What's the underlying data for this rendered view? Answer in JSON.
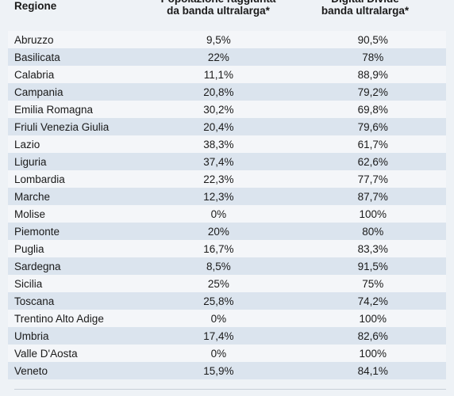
{
  "table": {
    "header": [
      "Regione",
      "Popolazione raggiunta\nda banda ultralarga*",
      "Digital Divide\nbanda ultralarga*"
    ],
    "rows": [
      [
        "Abruzzo",
        "9,5%",
        "90,5%"
      ],
      [
        "Basilicata",
        "22%",
        "78%"
      ],
      [
        "Calabria",
        "11,1%",
        "88,9%"
      ],
      [
        "Campania",
        "20,8%",
        "79,2%"
      ],
      [
        "Emilia Romagna",
        "30,2%",
        "69,8%"
      ],
      [
        "Friuli Venezia Giulia",
        "20,4%",
        "79,6%"
      ],
      [
        "Lazio",
        "38,3%",
        "61,7%"
      ],
      [
        "Liguria",
        "37,4%",
        "62,6%"
      ],
      [
        "Lombardia",
        "22,3%",
        "77,7%"
      ],
      [
        "Marche",
        "12,3%",
        "87,7%"
      ],
      [
        "Molise",
        "0%",
        "100%"
      ],
      [
        "Piemonte",
        "20%",
        "80%"
      ],
      [
        "Puglia",
        "16,7%",
        "83,3%"
      ],
      [
        "Sardegna",
        "8,5%",
        "91,5%"
      ],
      [
        "Sicilia",
        "25%",
        "75%"
      ],
      [
        "Toscana",
        "25,8%",
        "74,2%"
      ],
      [
        "Trentino Alto Adige",
        "0%",
        "100%"
      ],
      [
        "Umbria",
        "17,4%",
        "82,6%"
      ],
      [
        "Valle D'Aosta",
        "0%",
        "100%"
      ],
      [
        "Veneto",
        "15,9%",
        "84,1%"
      ]
    ]
  }
}
